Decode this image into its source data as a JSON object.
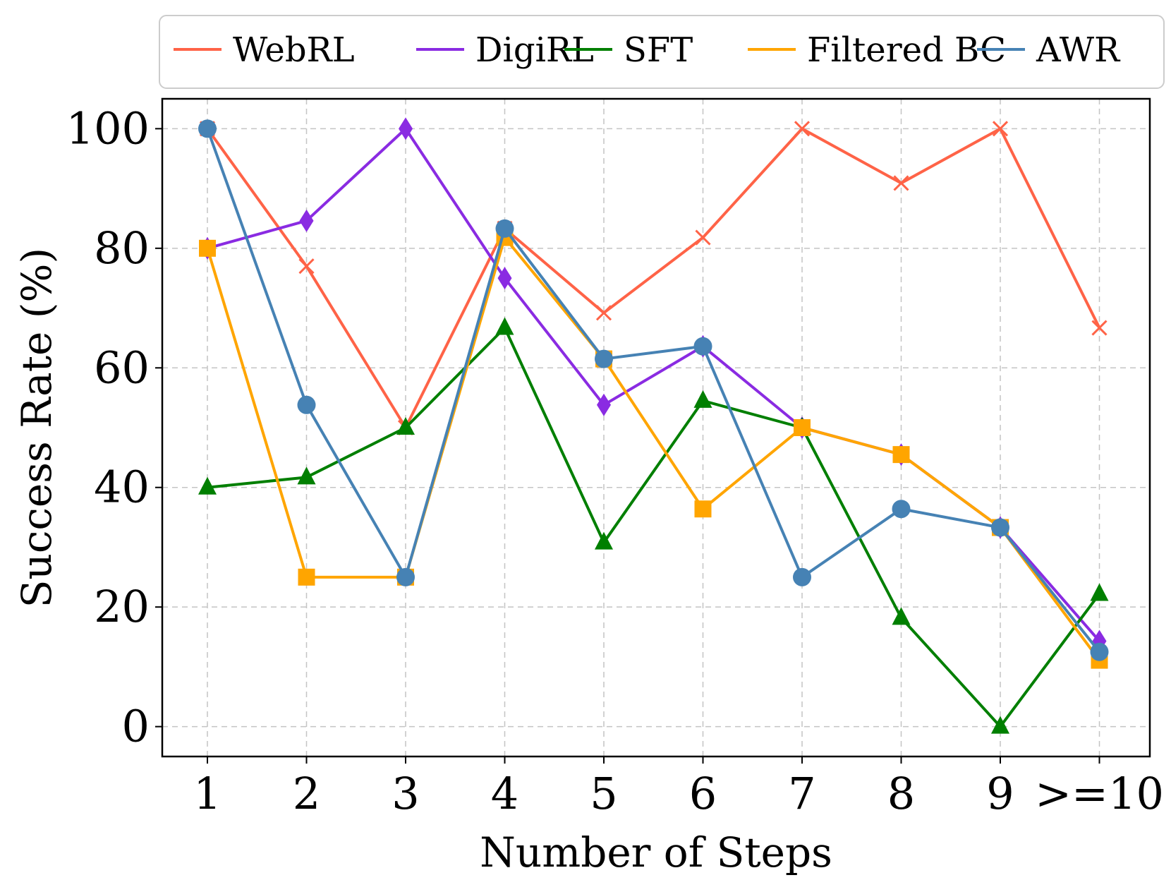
{
  "chart_data": {
    "type": "line",
    "title": "",
    "xlabel": "Number of Steps",
    "ylabel": "Success Rate (%)",
    "categories": [
      "1",
      "2",
      "3",
      "4",
      "5",
      "6",
      "7",
      "8",
      "9",
      ">=10"
    ],
    "ylim": [
      -5,
      105
    ],
    "yticks": [
      0,
      20,
      40,
      60,
      80,
      100
    ],
    "grid": true,
    "legend_position": "top",
    "series": [
      {
        "name": "WebRL",
        "color": "#ff6347",
        "marker": "x",
        "values": [
          100,
          77,
          50,
          83.3,
          69.2,
          81.8,
          100,
          90.9,
          100,
          66.7
        ]
      },
      {
        "name": "DigiRL",
        "color": "#8a2be2",
        "marker": "diamond",
        "values": [
          80,
          84.6,
          100,
          75,
          53.8,
          63.6,
          50,
          45.5,
          33.3,
          14.3
        ]
      },
      {
        "name": "SFT",
        "color": "#007f00",
        "marker": "triangle",
        "values": [
          40,
          41.7,
          50,
          66.7,
          30.8,
          54.5,
          50,
          18.2,
          0,
          22.2
        ]
      },
      {
        "name": "Filtered BC",
        "color": "#ffa500",
        "marker": "square",
        "values": [
          80,
          25,
          25,
          81.8,
          61.5,
          36.4,
          50,
          45.5,
          33.3,
          11.1
        ]
      },
      {
        "name": "AWR",
        "color": "#4682b4",
        "marker": "circle",
        "values": [
          100,
          53.8,
          25,
          83.3,
          61.5,
          63.6,
          25,
          36.4,
          33.3,
          12.5
        ]
      }
    ]
  }
}
